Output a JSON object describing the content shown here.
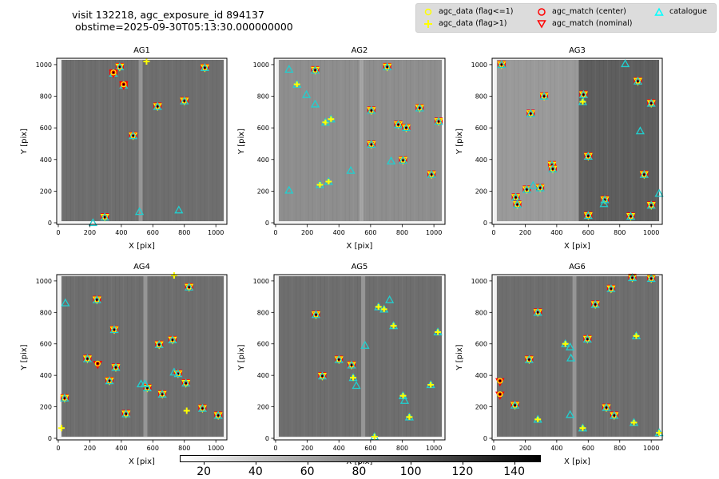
{
  "suptitle": {
    "line1": "visit 132218, agc_exposure_id 894137",
    "line2": " obstime=2025-09-30T05:13:30.000000000"
  },
  "legend": {
    "items": [
      {
        "label": "agc_data (flag<=1)",
        "marker": "circle",
        "color": "#ffff00"
      },
      {
        "label": "agc_data (flag>1)",
        "marker": "plus",
        "color": "#ffff00"
      },
      {
        "label": "agc_match (center)",
        "marker": "circle",
        "color": "#ff0000"
      },
      {
        "label": "agc_match (nominal)",
        "marker": "triangle-down",
        "color": "#ff0000"
      },
      {
        "label": "catalogue",
        "marker": "triangle-up",
        "color": "#00ffff"
      }
    ]
  },
  "colorbar": {
    "ticks": [
      20,
      40,
      60,
      80,
      100,
      120,
      140
    ],
    "range": [
      11,
      150
    ],
    "cmap": "gray_r"
  },
  "chart_data": [
    {
      "type": "scatter",
      "title": "AG1",
      "xlabel": "X [pix]",
      "ylabel": "Y [pix]",
      "xlim": [
        -10,
        1070
      ],
      "ylim": [
        -10,
        1040
      ],
      "xticks": [
        0,
        200,
        400,
        600,
        800,
        1000
      ],
      "yticks": [
        0,
        200,
        400,
        600,
        800,
        1000
      ],
      "background": {
        "level": "dark",
        "split_x": null,
        "stripe_x": 510
      },
      "matched": [
        [
          390,
          985
        ],
        [
          350,
          945
        ],
        [
          415,
          870
        ],
        [
          930,
          980
        ],
        [
          630,
          735
        ],
        [
          800,
          770
        ],
        [
          475,
          550
        ],
        [
          295,
          35
        ]
      ],
      "matched_no_cat": [
        [
          350,
          945
        ],
        [
          415,
          870
        ]
      ],
      "flag_gt1": [
        [
          560,
          1020
        ]
      ],
      "catalogue_only": [
        [
          515,
          70
        ],
        [
          765,
          80
        ],
        [
          220,
          0
        ]
      ]
    },
    {
      "type": "scatter",
      "title": "AG2",
      "xlabel": "X [pix]",
      "ylabel": "Y [pix]",
      "xlim": [
        -10,
        1070
      ],
      "ylim": [
        -10,
        1040
      ],
      "xticks": [
        0,
        200,
        400,
        600,
        800,
        1000
      ],
      "yticks": [
        0,
        200,
        400,
        600,
        800,
        1000
      ],
      "background": {
        "level": "light",
        "split_x": null,
        "stripe_x": 530
      },
      "matched": [
        [
          250,
          965
        ],
        [
          705,
          985
        ],
        [
          605,
          710
        ],
        [
          910,
          725
        ],
        [
          775,
          620
        ],
        [
          825,
          600
        ],
        [
          1030,
          640
        ],
        [
          605,
          495
        ],
        [
          805,
          395
        ],
        [
          985,
          305
        ]
      ],
      "matched_no_cat": [],
      "flag_gt1": [
        [
          135,
          875
        ],
        [
          315,
          635
        ],
        [
          350,
          655
        ],
        [
          280,
          240
        ],
        [
          335,
          260
        ]
      ],
      "catalogue_only": [
        [
          85,
          970
        ],
        [
          195,
          810
        ],
        [
          250,
          750
        ],
        [
          475,
          330
        ],
        [
          730,
          390
        ],
        [
          85,
          205
        ]
      ]
    },
    {
      "type": "scatter",
      "title": "AG3",
      "xlabel": "X [pix]",
      "ylabel": "Y [pix]",
      "xlim": [
        -10,
        1070
      ],
      "ylim": [
        -10,
        1040
      ],
      "xticks": [
        0,
        200,
        400,
        600,
        800,
        1000
      ],
      "yticks": [
        0,
        200,
        400,
        600,
        800,
        1000
      ],
      "background": {
        "level": "split",
        "split_x": 540,
        "stripe_x": null
      },
      "matched": [
        [
          50,
          1000
        ],
        [
          320,
          800
        ],
        [
          235,
          690
        ],
        [
          570,
          810
        ],
        [
          915,
          895
        ],
        [
          1000,
          755
        ],
        [
          600,
          420
        ],
        [
          370,
          365
        ],
        [
          375,
          340
        ],
        [
          210,
          210
        ],
        [
          295,
          220
        ],
        [
          140,
          160
        ],
        [
          150,
          115
        ],
        [
          705,
          145
        ],
        [
          600,
          45
        ],
        [
          870,
          40
        ],
        [
          955,
          305
        ],
        [
          1000,
          110
        ]
      ],
      "matched_no_cat": [],
      "flag_gt1": [
        [
          565,
          765
        ]
      ],
      "catalogue_only": [
        [
          835,
          1005
        ],
        [
          930,
          580
        ],
        [
          250,
          235
        ],
        [
          1050,
          185
        ],
        [
          700,
          120
        ]
      ]
    },
    {
      "type": "scatter",
      "title": "AG4",
      "xlabel": "X [pix]",
      "ylabel": "Y [pix]",
      "xlim": [
        -10,
        1070
      ],
      "ylim": [
        -10,
        1040
      ],
      "xticks": [
        0,
        200,
        400,
        600,
        800,
        1000
      ],
      "yticks": [
        0,
        200,
        400,
        600,
        800,
        1000
      ],
      "background": {
        "level": "dark",
        "split_x": null,
        "stripe_x": 540
      },
      "matched": [
        [
          830,
          960
        ],
        [
          245,
          880
        ],
        [
          355,
          690
        ],
        [
          640,
          595
        ],
        [
          725,
          625
        ],
        [
          185,
          505
        ],
        [
          365,
          450
        ],
        [
          325,
          365
        ],
        [
          760,
          410
        ],
        [
          810,
          350
        ],
        [
          660,
          280
        ],
        [
          40,
          255
        ],
        [
          430,
          155
        ],
        [
          915,
          190
        ],
        [
          1015,
          145
        ],
        [
          565,
          320
        ]
      ],
      "matched_no_cat": [
        [
          250,
          470
        ]
      ],
      "flag_gt1": [
        [
          735,
          1035
        ],
        [
          815,
          175
        ],
        [
          20,
          65
        ]
      ],
      "catalogue_only": [
        [
          45,
          860
        ],
        [
          735,
          420
        ],
        [
          525,
          345
        ],
        [
          550,
          345
        ]
      ]
    },
    {
      "type": "scatter",
      "title": "AG5",
      "xlabel": "X [pix]",
      "ylabel": "Y [pix]",
      "xlim": [
        -10,
        1070
      ],
      "ylim": [
        -10,
        1040
      ],
      "xticks": [
        0,
        200,
        400,
        600,
        800,
        1000
      ],
      "yticks": [
        0,
        200,
        400,
        600,
        800,
        1000
      ],
      "background": {
        "level": "dark",
        "split_x": null,
        "stripe_x": 540
      },
      "matched": [
        [
          255,
          785
        ],
        [
          400,
          500
        ],
        [
          480,
          465
        ],
        [
          295,
          395
        ]
      ],
      "matched_no_cat": [],
      "flag_gt1": [
        [
          650,
          835
        ],
        [
          685,
          820
        ],
        [
          745,
          715
        ],
        [
          1025,
          675
        ],
        [
          490,
          385
        ],
        [
          805,
          270
        ],
        [
          980,
          340
        ],
        [
          845,
          135
        ],
        [
          625,
          10
        ]
      ],
      "catalogue_only": [
        [
          720,
          880
        ],
        [
          565,
          590
        ],
        [
          510,
          335
        ],
        [
          815,
          240
        ]
      ]
    },
    {
      "type": "scatter",
      "title": "AG6",
      "xlabel": "X [pix]",
      "ylabel": "Y [pix]",
      "xlim": [
        -10,
        1070
      ],
      "ylim": [
        -10,
        1040
      ],
      "xticks": [
        0,
        200,
        400,
        600,
        800,
        1000
      ],
      "yticks": [
        0,
        200,
        400,
        600,
        800,
        1000
      ],
      "background": {
        "level": "dark",
        "split_x": null,
        "stripe_x": 500
      },
      "matched": [
        [
          880,
          1020
        ],
        [
          1000,
          1015
        ],
        [
          745,
          950
        ],
        [
          645,
          850
        ],
        [
          280,
          800
        ],
        [
          595,
          630
        ],
        [
          225,
          500
        ],
        [
          135,
          210
        ],
        [
          715,
          195
        ],
        [
          765,
          145
        ]
      ],
      "matched_no_cat": [
        [
          40,
          360
        ],
        [
          40,
          275
        ]
      ],
      "flag_gt1": [
        [
          455,
          600
        ],
        [
          905,
          650
        ],
        [
          280,
          120
        ],
        [
          565,
          65
        ],
        [
          890,
          100
        ],
        [
          1050,
          35
        ]
      ],
      "catalogue_only": [
        [
          485,
          580
        ],
        [
          490,
          510
        ],
        [
          485,
          150
        ]
      ]
    }
  ]
}
